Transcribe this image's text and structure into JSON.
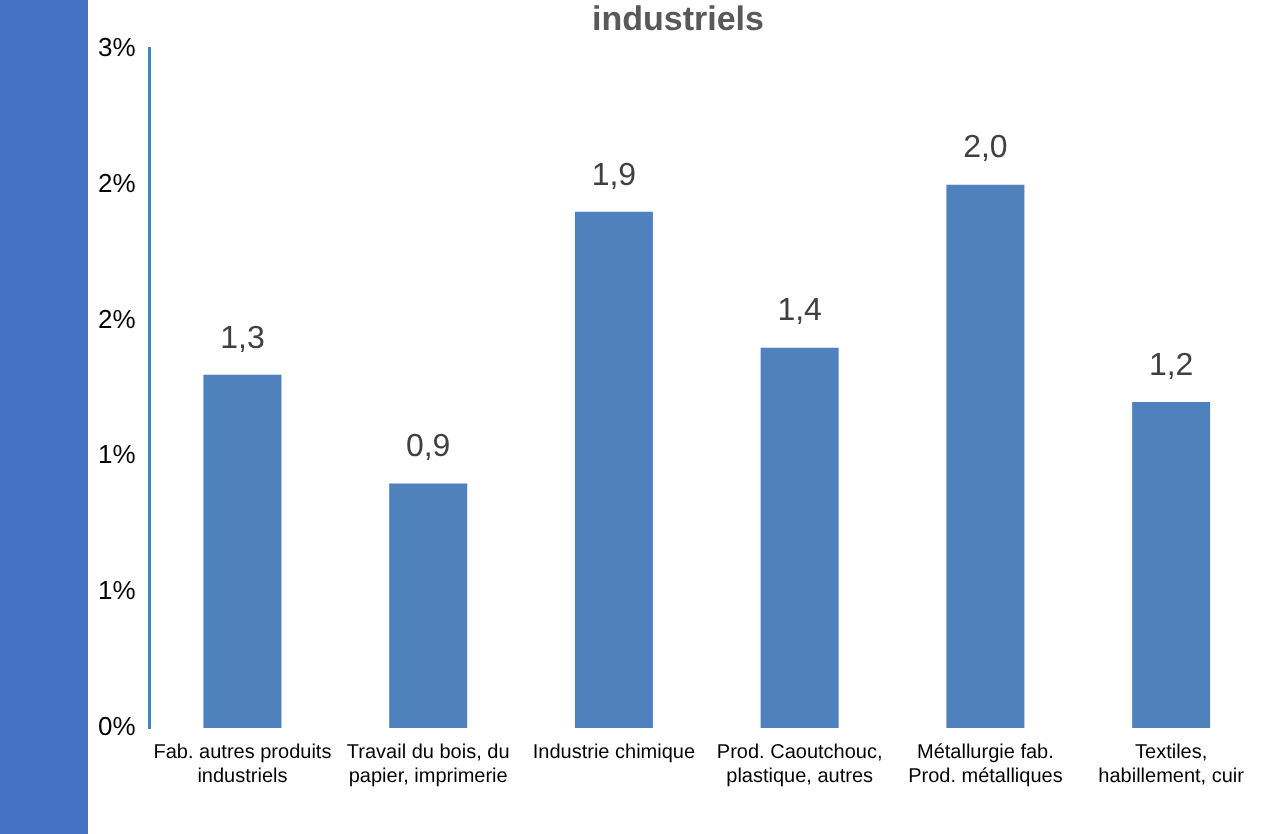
{
  "chart_data": {
    "type": "bar",
    "title": "industriels",
    "categories": [
      "Fab. autres produits industriels",
      "Travail du bois, du papier, imprimerie",
      "Industrie chimique",
      "Prod. Caoutchouc, plastique, autres",
      "Métallurgie fab. Prod. métalliques",
      "Textiles, habillement, cuir"
    ],
    "values": [
      1.3,
      0.9,
      1.9,
      1.4,
      2.0,
      1.2
    ],
    "value_labels": [
      "1,3",
      "0,9",
      "1,9",
      "1,4",
      "2,0",
      "1,2"
    ],
    "color": "#4f81bd",
    "ylim": [
      0,
      2.5
    ],
    "yticks": [
      {
        "value": 0,
        "label": "0%"
      },
      {
        "value": 0.5,
        "label": "1%"
      },
      {
        "value": 1,
        "label": "1%"
      },
      {
        "value": 1.5,
        "label": "2%"
      },
      {
        "value": 2,
        "label": "2%"
      },
      {
        "value": 2.5,
        "label": "3%"
      }
    ],
    "grid": false,
    "legend": false
  }
}
